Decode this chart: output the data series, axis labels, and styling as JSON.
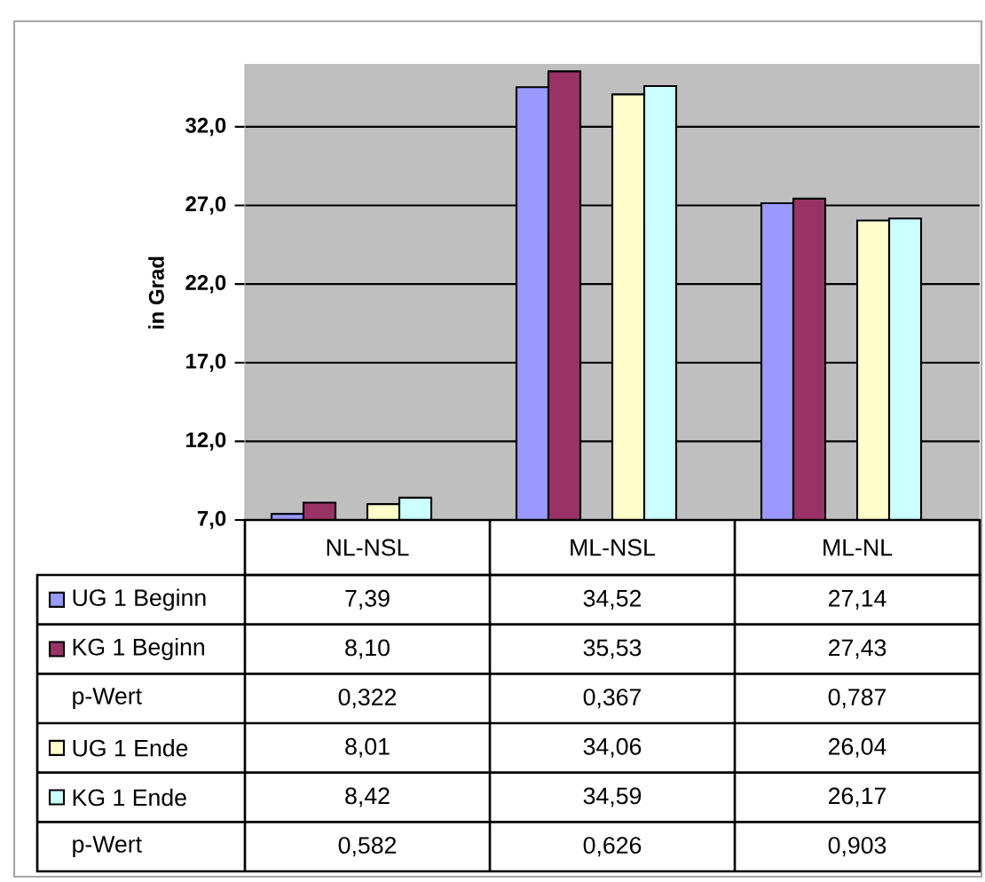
{
  "chart_data": {
    "type": "bar",
    "ylabel": "in Grad",
    "categories": [
      "NL-NSL",
      "ML-NSL",
      "ML-NL"
    ],
    "series": [
      {
        "name": "UG 1 Beginn",
        "color": "#9999ff",
        "values": [
          7.39,
          34.52,
          27.14
        ],
        "value_labels": [
          "7,39",
          "34,52",
          "27,14"
        ]
      },
      {
        "name": "KG 1 Beginn",
        "color": "#993366",
        "values": [
          8.1,
          35.53,
          27.43
        ],
        "value_labels": [
          "8,10",
          "35,53",
          "27,43"
        ]
      },
      {
        "name": "UG 1 Ende",
        "color": "#ffffcc",
        "values": [
          8.01,
          34.06,
          26.04
        ],
        "value_labels": [
          "8,01",
          "34,06",
          "26,04"
        ]
      },
      {
        "name": "KG 1 Ende",
        "color": "#ccffff",
        "values": [
          8.42,
          34.59,
          26.17
        ],
        "value_labels": [
          "8,42",
          "34,59",
          "26,17"
        ]
      }
    ],
    "annotations": [
      "p-Wert",
      "0,322",
      "0,367",
      "0,787",
      "p-Wert",
      "0,582",
      "0,626",
      "0,903"
    ],
    "ylim": [
      7,
      36
    ],
    "yticks": [
      {
        "value": 7,
        "label": "7,0"
      },
      {
        "value": 12,
        "label": "12,0"
      },
      {
        "value": 17,
        "label": "17,0"
      },
      {
        "value": 22,
        "label": "22,0"
      },
      {
        "value": 27,
        "label": "27,0"
      },
      {
        "value": 32,
        "label": "32,0"
      }
    ],
    "grid": "y",
    "legend": "bottom"
  }
}
